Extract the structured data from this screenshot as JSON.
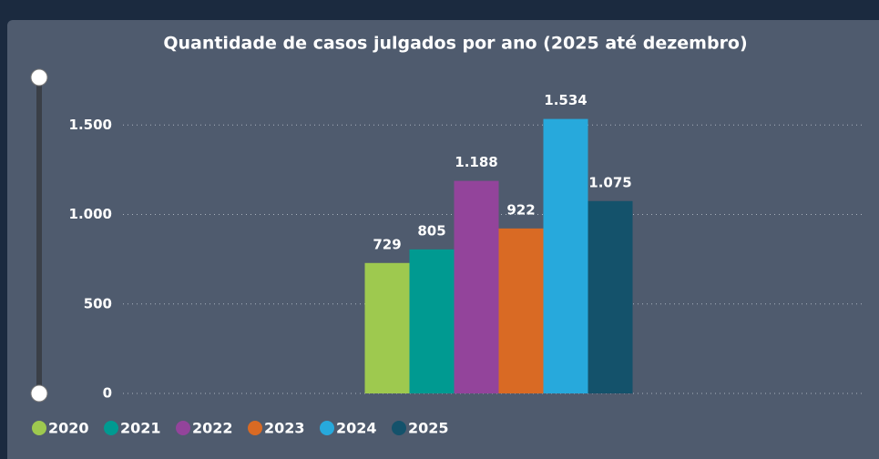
{
  "chart_data": {
    "type": "bar",
    "title": "Quantidade de casos julgados por ano (2025 até dezembro)",
    "categories": [
      null
    ],
    "series": [
      {
        "name": "2020",
        "color": "#9ec94f",
        "values": [
          729
        ]
      },
      {
        "name": "2021",
        "color": "#009a91",
        "values": [
          805
        ]
      },
      {
        "name": "2022",
        "color": "#93449b",
        "values": [
          1188
        ],
        "value_labels": [
          "1.188"
        ]
      },
      {
        "name": "2023",
        "color": "#d96a24",
        "values": [
          922
        ]
      },
      {
        "name": "2024",
        "color": "#27a9dc",
        "values": [
          1534
        ],
        "value_labels": [
          "1.534"
        ]
      },
      {
        "name": "2025",
        "color": "#14526b",
        "values": [
          1075
        ],
        "value_labels": [
          "1.075"
        ]
      }
    ],
    "ylim": [
      0,
      1700
    ],
    "yticks": [
      0,
      500,
      {
        "value": 1000,
        "label": "1.000"
      },
      {
        "value": 1500,
        "label": "1.500"
      }
    ],
    "grid": true,
    "legend": "bottom-left"
  }
}
